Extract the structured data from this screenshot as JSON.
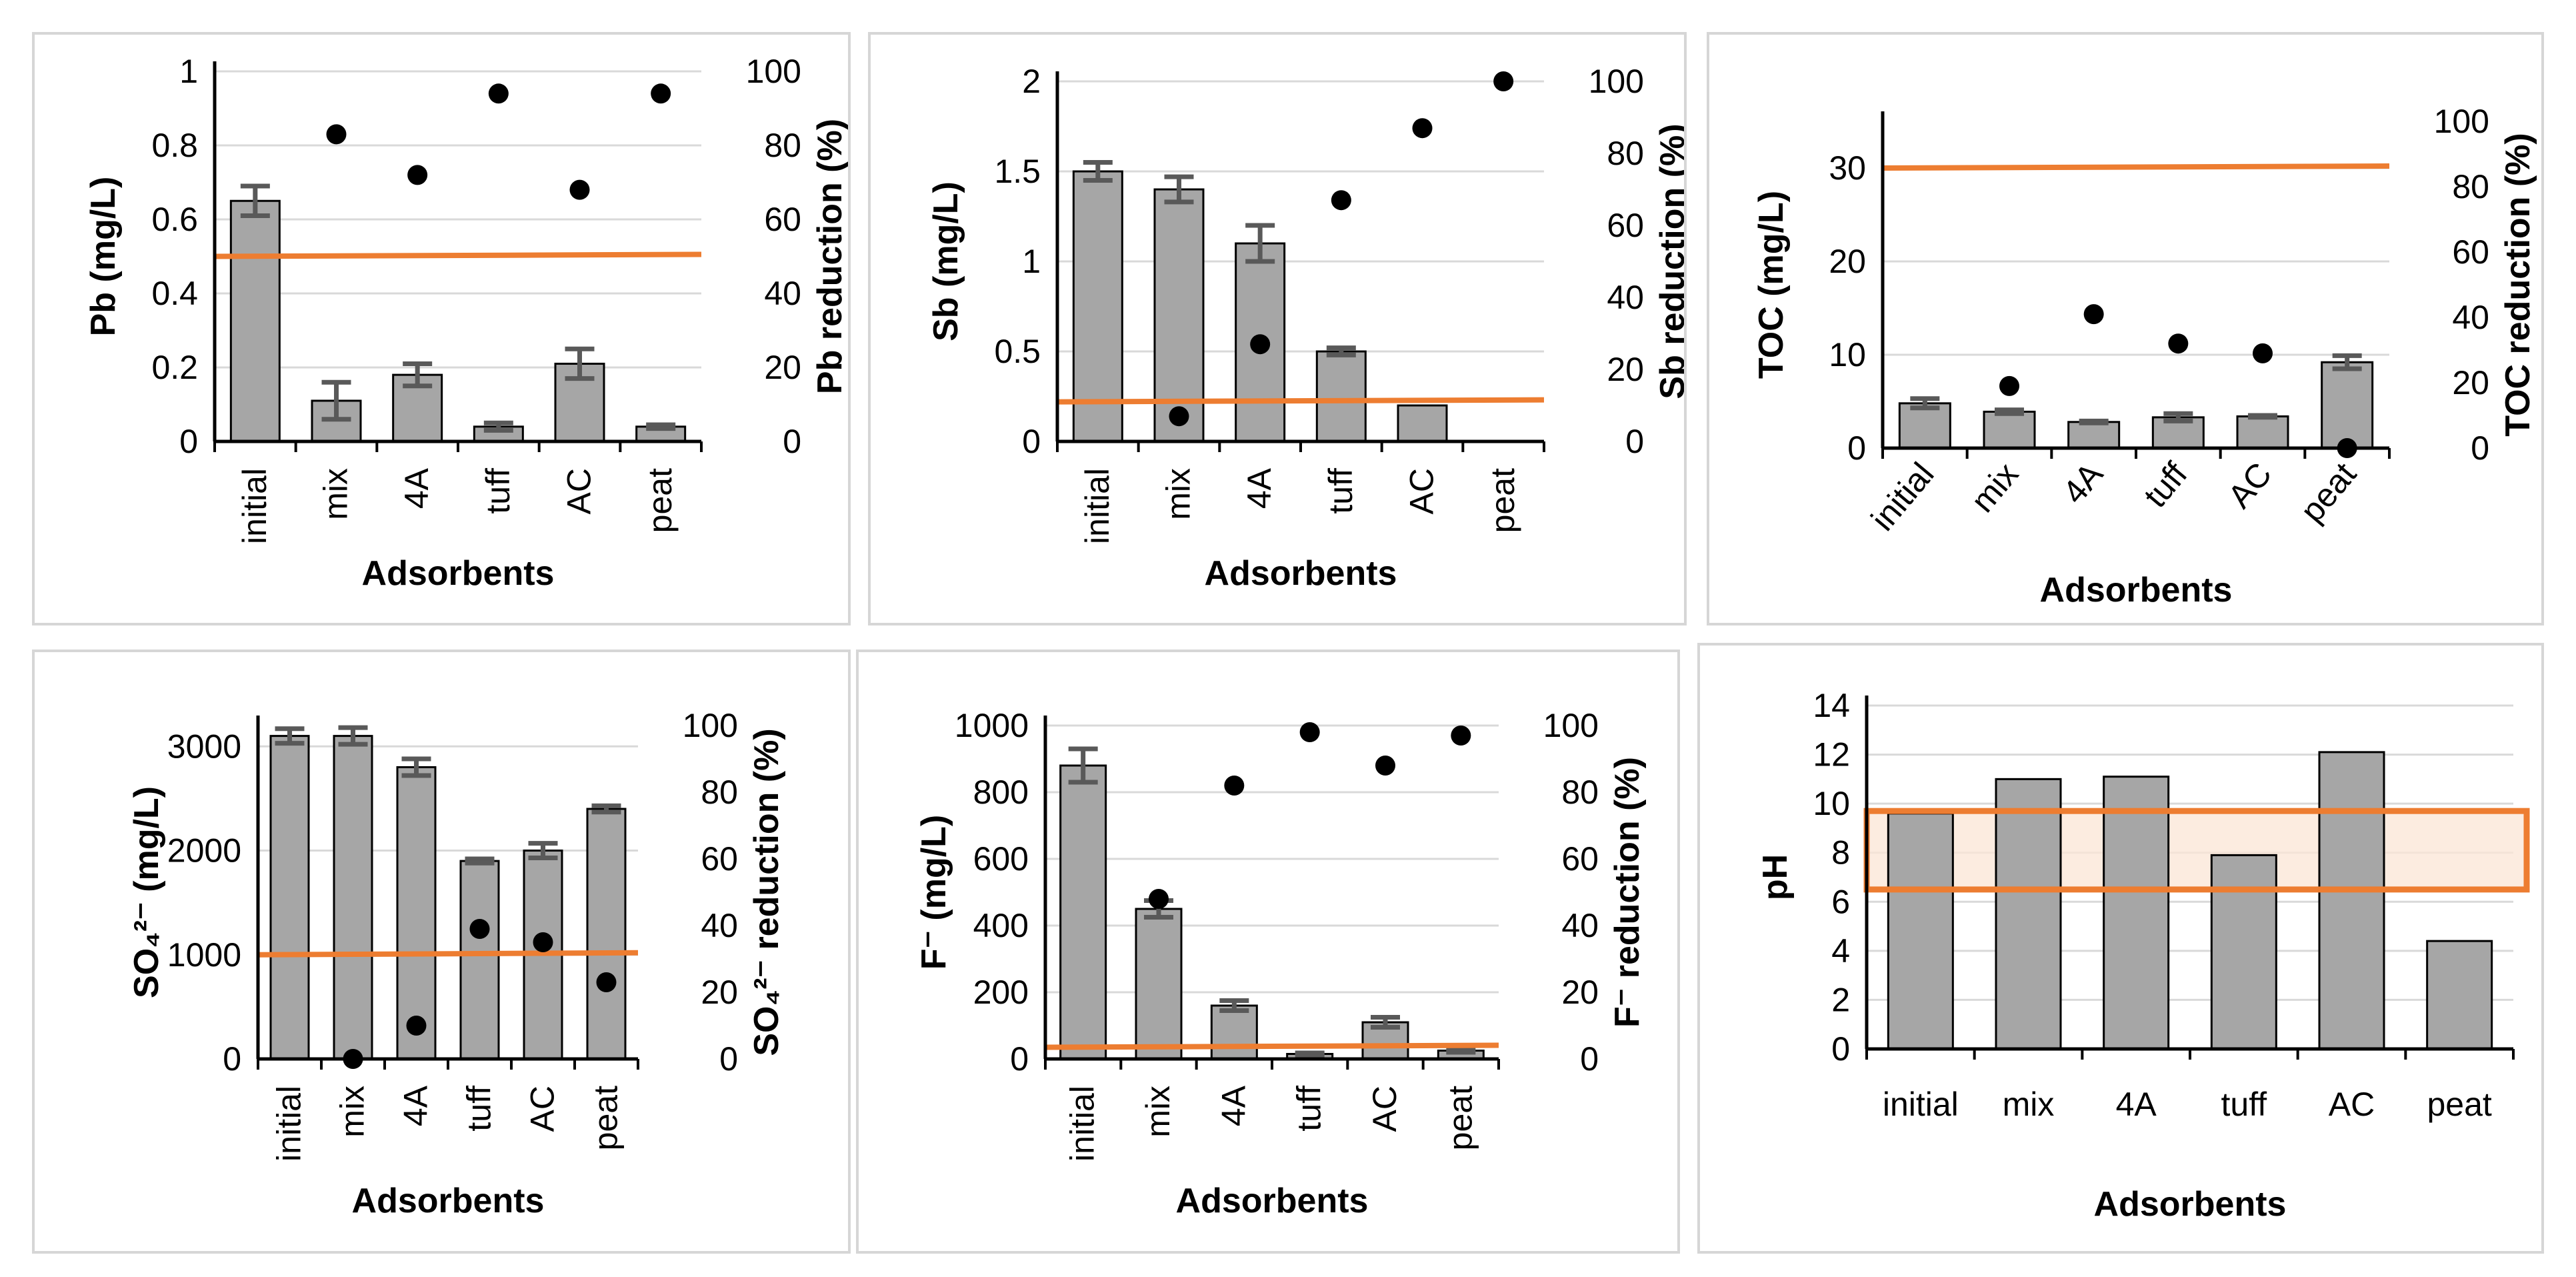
{
  "colors": {
    "bar": "#a6a6a6",
    "bar_stroke": "#000000",
    "error": "#595959",
    "reduction_point": "#000000",
    "limit_line": "#ed7d31",
    "range_band": "#fbe5d6",
    "grid": "#d9d9d9"
  },
  "chart_data": [
    {
      "type": "bar",
      "categories": [
        "initial",
        "mix",
        "4A",
        "tuff",
        "AC",
        "peat"
      ],
      "values": [
        0.65,
        0.11,
        0.18,
        0.04,
        0.21,
        0.04
      ],
      "errors": [
        0.04,
        0.05,
        0.03,
        0.01,
        0.04,
        0.005
      ],
      "reduction": [
        null,
        83,
        72,
        94,
        68,
        94
      ],
      "limit": 0.5,
      "xlabel": "Adsorbents",
      "ylabel": "Pb (mg/L)",
      "y2label": "Pb reduction (%)",
      "ylim": [
        0,
        1
      ],
      "yticks": [
        "0",
        "0.2",
        "0.4",
        "0.6",
        "0.8",
        "1"
      ],
      "y2lim": [
        0,
        100
      ],
      "y2ticks": [
        "0",
        "20",
        "40",
        "60",
        "80",
        "100"
      ],
      "xrotated": true,
      "grid": true
    },
    {
      "type": "bar",
      "categories": [
        "initial",
        "mix",
        "4A",
        "tuff",
        "AC",
        "peat"
      ],
      "values": [
        1.5,
        1.4,
        1.1,
        0.5,
        0.2,
        0.0
      ],
      "errors": [
        0.05,
        0.07,
        0.1,
        0.02,
        0.0,
        0.0
      ],
      "reduction": [
        null,
        7,
        27,
        67,
        87,
        100
      ],
      "limit": 0.22,
      "xlabel": "Adsorbents",
      "ylabel": "Sb (mg/L)",
      "y2label": "Sb reduction (%)",
      "ylim": [
        0,
        2
      ],
      "yticks": [
        "0",
        "0.5",
        "1",
        "1.5",
        "2"
      ],
      "y2lim": [
        0,
        100
      ],
      "y2ticks": [
        "0",
        "20",
        "40",
        "60",
        "80",
        "100"
      ],
      "xrotated": true,
      "grid": true
    },
    {
      "type": "bar",
      "categories": [
        "initial",
        "mix",
        "4A",
        "tuff",
        "AC",
        "peat"
      ],
      "values": [
        4.8,
        3.9,
        2.8,
        3.3,
        3.4,
        9.2
      ],
      "errors": [
        0.5,
        0.2,
        0.1,
        0.4,
        0.1,
        0.7
      ],
      "reduction": [
        null,
        19,
        41,
        32,
        29,
        0
      ],
      "limit": 30,
      "xlabel": "Adsorbents",
      "ylabel": "TOC (mg/L)",
      "y2label": "TOC reduction (%)",
      "ylim": [
        0,
        35
      ],
      "yticks": [
        "0",
        "10",
        "20",
        "30"
      ],
      "ytick_values": [
        0,
        10,
        20,
        30
      ],
      "y2lim": [
        0,
        100
      ],
      "y2ticks": [
        "0",
        "20",
        "40",
        "60",
        "80",
        "100"
      ],
      "xrotated": true,
      "xtick_angle": -50,
      "grid": true
    },
    {
      "type": "bar",
      "categories": [
        "initial",
        "mix",
        "4A",
        "tuff",
        "AC",
        "peat"
      ],
      "values": [
        3100,
        3100,
        2800,
        1900,
        2000,
        2400
      ],
      "errors": [
        70,
        80,
        80,
        20,
        70,
        30
      ],
      "reduction": [
        null,
        0,
        10,
        39,
        35,
        23
      ],
      "limit": 1000,
      "xlabel": "Adsorbents",
      "ylabel": "SO₄²⁻ (mg/L)",
      "y2label": "SO₄²⁻ reduction (%)",
      "ylim": [
        0,
        3200
      ],
      "yticks": [
        "0",
        "1000",
        "2000",
        "3000"
      ],
      "ytick_values": [
        0,
        1000,
        2000,
        3000
      ],
      "y2lim": [
        0,
        100
      ],
      "y2ticks": [
        "0",
        "20",
        "40",
        "60",
        "80",
        "100"
      ],
      "xrotated": true,
      "grid": true
    },
    {
      "type": "bar",
      "categories": [
        "initial",
        "mix",
        "4A",
        "tuff",
        "AC",
        "peat"
      ],
      "values": [
        880,
        450,
        160,
        15,
        110,
        25
      ],
      "errors": [
        50,
        25,
        15,
        3,
        15,
        5
      ],
      "reduction": [
        null,
        48,
        82,
        98,
        88,
        97
      ],
      "limit": 35,
      "xlabel": "Adsorbents",
      "ylabel": "F⁻ (mg/L)",
      "y2label": "F⁻ reduction (%)",
      "ylim": [
        0,
        1000
      ],
      "yticks": [
        "0",
        "200",
        "400",
        "600",
        "800",
        "1000"
      ],
      "y2lim": [
        0,
        100
      ],
      "y2ticks": [
        "0",
        "20",
        "40",
        "60",
        "80",
        "100"
      ],
      "xrotated": true,
      "grid": true
    },
    {
      "type": "bar",
      "categories": [
        "initial",
        "mix",
        "4A",
        "tuff",
        "AC",
        "peat"
      ],
      "values": [
        9.6,
        11.0,
        11.1,
        7.9,
        12.1,
        4.4
      ],
      "range_band": [
        6.5,
        9.7
      ],
      "xlabel": "Adsorbents",
      "ylabel": "pH",
      "ylim": [
        0,
        14
      ],
      "yticks": [
        "0",
        "2",
        "4",
        "6",
        "8",
        "10",
        "12",
        "14"
      ],
      "xrotated": false,
      "grid": true
    }
  ]
}
